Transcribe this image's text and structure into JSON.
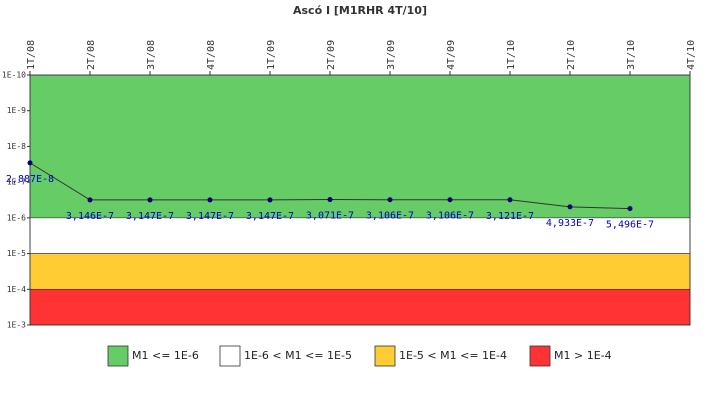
{
  "chart_data": {
    "type": "line",
    "title": "Ascó I [M1RHR 4T/10]",
    "categories": [
      "1T/08",
      "2T/08",
      "3T/08",
      "4T/08",
      "1T/09",
      "2T/09",
      "3T/09",
      "4T/09",
      "1T/10",
      "2T/10",
      "3T/10",
      "4T/10"
    ],
    "series": [
      {
        "name": "M1",
        "color": "#333333",
        "marker_color": "#000080",
        "values": [
          2.887e-08,
          3.146e-07,
          3.147e-07,
          3.147e-07,
          3.147e-07,
          3.071e-07,
          3.106e-07,
          3.106e-07,
          3.121e-07,
          4.933e-07,
          5.496e-07,
          null
        ],
        "value_labels": [
          "2,887E-8",
          "3,146E-7",
          "3,147E-7",
          "3,147E-7",
          "3,147E-7",
          "3,071E-7",
          "3,106E-7",
          "3,106E-7",
          "3,121E-7",
          "4,933E-7",
          "5,496E-7",
          null
        ]
      }
    ],
    "log_scale": true,
    "inverted": true,
    "ylim": [
      1e-10,
      0.001
    ],
    "yticks": [
      {
        "value": 1e-10,
        "label": "1E-10"
      },
      {
        "value": 1e-09,
        "label": "1E-9"
      },
      {
        "value": 1e-08,
        "label": "1E-8"
      },
      {
        "value": 1e-07,
        "label": "1E-7"
      },
      {
        "value": 1e-06,
        "label": "1E-6"
      },
      {
        "value": 1e-05,
        "label": "1E-5"
      },
      {
        "value": 0.0001,
        "label": "1E-4"
      },
      {
        "value": 0.001,
        "label": "1E-3"
      }
    ],
    "bands": [
      {
        "name": "M1 <= 1E-6",
        "color": "#66cc66",
        "from": 1e-10,
        "to": 1e-06
      },
      {
        "name": "1E-6 < M1 <= 1E-5",
        "color": "#ffffff",
        "from": 1e-06,
        "to": 1e-05
      },
      {
        "name": "1E-5 < M1 <= 1E-4",
        "color": "#ffcc33",
        "from": 1e-05,
        "to": 0.0001
      },
      {
        "name": "M1 > 1E-4",
        "color": "#ff3333",
        "from": 0.0001,
        "to": 0.001
      }
    ]
  }
}
